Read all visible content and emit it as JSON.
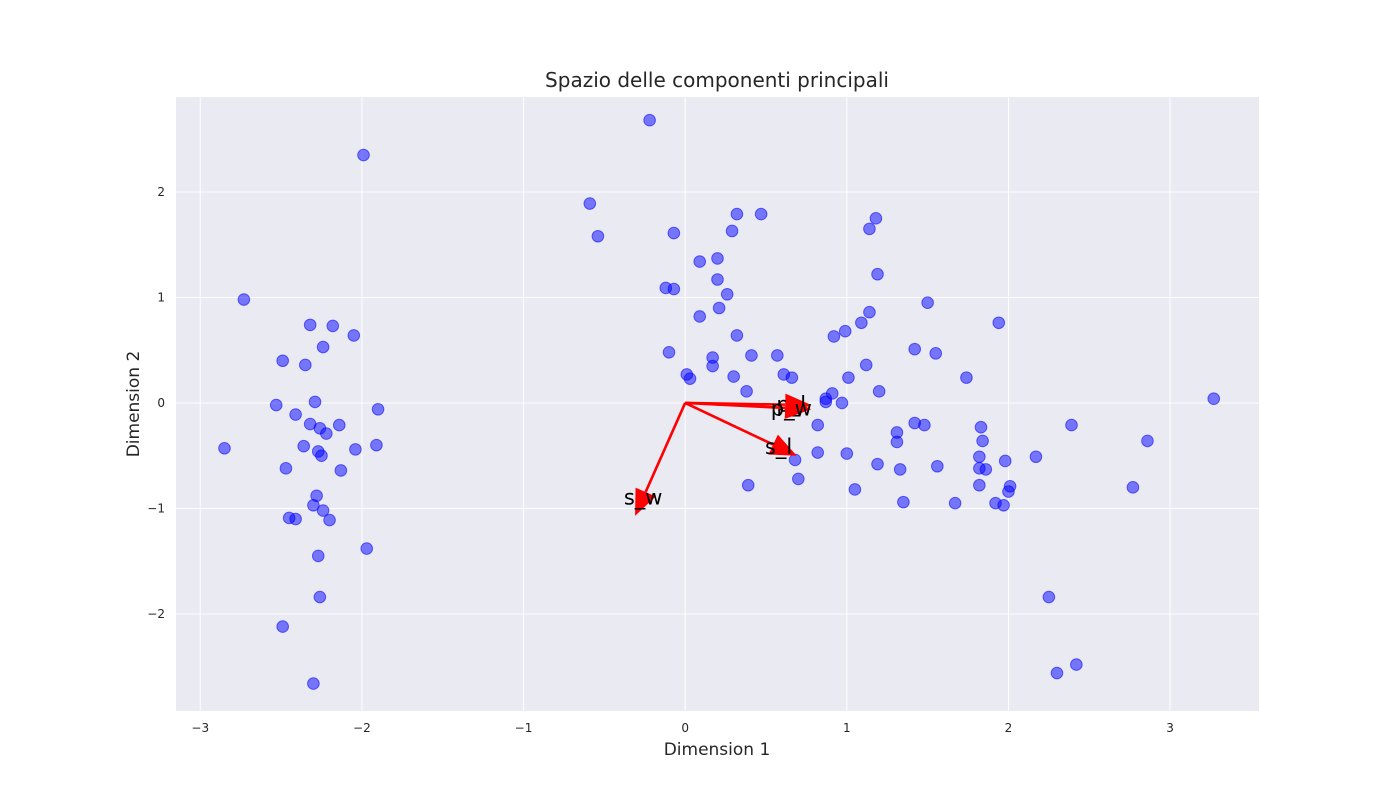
{
  "chart_data": {
    "type": "scatter",
    "title": "Spazio delle componenti principali",
    "xlabel": "Dimension 1",
    "ylabel": "Dimension 2",
    "xlim": [
      -3.15,
      3.55
    ],
    "ylim": [
      -2.92,
      2.9
    ],
    "xticks": [
      -3,
      -2,
      -1,
      0,
      1,
      2,
      3
    ],
    "yticks": [
      -2,
      -1,
      0,
      1,
      2
    ],
    "xtick_labels": [
      "−3",
      "−2",
      "−1",
      "0",
      "1",
      "2",
      "3"
    ],
    "ytick_labels": [
      "−2",
      "−1",
      "0",
      "1",
      "2"
    ],
    "grid": true,
    "background_color": "#eaeaf2",
    "point_color": "#0000ff",
    "arrow_color": "#ff0000",
    "points": [
      {
        "x": -2.85,
        "y": -0.43
      },
      {
        "x": -2.73,
        "y": 0.98
      },
      {
        "x": -2.53,
        "y": -0.02
      },
      {
        "x": -2.49,
        "y": 0.4
      },
      {
        "x": -2.49,
        "y": -2.12
      },
      {
        "x": -2.47,
        "y": -0.62
      },
      {
        "x": -2.45,
        "y": -1.09
      },
      {
        "x": -2.41,
        "y": -1.1
      },
      {
        "x": -2.41,
        "y": -0.11
      },
      {
        "x": -2.36,
        "y": -0.41
      },
      {
        "x": -2.35,
        "y": 0.36
      },
      {
        "x": -2.32,
        "y": 0.74
      },
      {
        "x": -2.32,
        "y": -0.2
      },
      {
        "x": -2.3,
        "y": -0.97
      },
      {
        "x": -2.3,
        "y": -2.66
      },
      {
        "x": -2.29,
        "y": 0.01
      },
      {
        "x": -2.28,
        "y": -0.88
      },
      {
        "x": -2.27,
        "y": -0.46
      },
      {
        "x": -2.27,
        "y": -1.45
      },
      {
        "x": -2.26,
        "y": -0.24
      },
      {
        "x": -2.26,
        "y": -1.84
      },
      {
        "x": -2.25,
        "y": -0.5
      },
      {
        "x": -2.24,
        "y": -1.02
      },
      {
        "x": -2.24,
        "y": 0.53
      },
      {
        "x": -2.22,
        "y": -0.29
      },
      {
        "x": -2.2,
        "y": -1.11
      },
      {
        "x": -2.18,
        "y": 0.73
      },
      {
        "x": -2.14,
        "y": -0.21
      },
      {
        "x": -2.13,
        "y": -0.64
      },
      {
        "x": -2.05,
        "y": 0.64
      },
      {
        "x": -2.04,
        "y": -0.44
      },
      {
        "x": -1.99,
        "y": 2.35
      },
      {
        "x": -1.97,
        "y": -1.38
      },
      {
        "x": -1.91,
        "y": -0.4
      },
      {
        "x": -1.9,
        "y": -0.06
      },
      {
        "x": -0.59,
        "y": 1.89
      },
      {
        "x": -0.54,
        "y": 1.58
      },
      {
        "x": -0.22,
        "y": 2.68
      },
      {
        "x": -0.12,
        "y": 1.09
      },
      {
        "x": -0.1,
        "y": 0.48
      },
      {
        "x": -0.07,
        "y": 1.61
      },
      {
        "x": -0.07,
        "y": 1.08
      },
      {
        "x": 0.01,
        "y": 0.27
      },
      {
        "x": 0.03,
        "y": 0.23
      },
      {
        "x": 0.09,
        "y": 1.34
      },
      {
        "x": 0.09,
        "y": 0.82
      },
      {
        "x": 0.17,
        "y": 0.43
      },
      {
        "x": 0.17,
        "y": 0.35
      },
      {
        "x": 0.2,
        "y": 1.37
      },
      {
        "x": 0.2,
        "y": 1.17
      },
      {
        "x": 0.21,
        "y": 0.9
      },
      {
        "x": 0.26,
        "y": 1.03
      },
      {
        "x": 0.29,
        "y": 1.63
      },
      {
        "x": 0.3,
        "y": 0.25
      },
      {
        "x": 0.32,
        "y": 1.79
      },
      {
        "x": 0.32,
        "y": 0.64
      },
      {
        "x": 0.38,
        "y": 0.11
      },
      {
        "x": 0.39,
        "y": -0.78
      },
      {
        "x": 0.41,
        "y": 0.45
      },
      {
        "x": 0.47,
        "y": 1.79
      },
      {
        "x": 0.57,
        "y": 0.45
      },
      {
        "x": 0.61,
        "y": 0.27
      },
      {
        "x": 0.66,
        "y": 0.24
      },
      {
        "x": 0.68,
        "y": -0.54
      },
      {
        "x": 0.7,
        "y": -0.72
      },
      {
        "x": 0.82,
        "y": -0.21
      },
      {
        "x": 0.82,
        "y": -0.47
      },
      {
        "x": 0.87,
        "y": 0.01
      },
      {
        "x": 0.87,
        "y": 0.04
      },
      {
        "x": 0.91,
        "y": 0.09
      },
      {
        "x": 0.92,
        "y": 0.63
      },
      {
        "x": 0.97,
        "y": 0.0
      },
      {
        "x": 0.99,
        "y": 0.68
      },
      {
        "x": 1.0,
        "y": -0.48
      },
      {
        "x": 1.01,
        "y": 0.24
      },
      {
        "x": 1.05,
        "y": -0.82
      },
      {
        "x": 1.09,
        "y": 0.76
      },
      {
        "x": 1.12,
        "y": 0.36
      },
      {
        "x": 1.14,
        "y": 1.65
      },
      {
        "x": 1.14,
        "y": 0.86
      },
      {
        "x": 1.18,
        "y": 1.75
      },
      {
        "x": 1.19,
        "y": 1.22
      },
      {
        "x": 1.19,
        "y": -0.58
      },
      {
        "x": 1.2,
        "y": 0.11
      },
      {
        "x": 1.31,
        "y": -0.28
      },
      {
        "x": 1.31,
        "y": -0.37
      },
      {
        "x": 1.33,
        "y": -0.63
      },
      {
        "x": 1.35,
        "y": -0.94
      },
      {
        "x": 1.42,
        "y": -0.19
      },
      {
        "x": 1.42,
        "y": 0.51
      },
      {
        "x": 1.48,
        "y": -0.21
      },
      {
        "x": 1.5,
        "y": 0.95
      },
      {
        "x": 1.55,
        "y": 0.47
      },
      {
        "x": 1.56,
        "y": -0.6
      },
      {
        "x": 1.67,
        "y": -0.95
      },
      {
        "x": 1.74,
        "y": 0.24
      },
      {
        "x": 1.82,
        "y": -0.51
      },
      {
        "x": 1.82,
        "y": -0.62
      },
      {
        "x": 1.82,
        "y": -0.78
      },
      {
        "x": 1.83,
        "y": -0.23
      },
      {
        "x": 1.84,
        "y": -0.36
      },
      {
        "x": 1.86,
        "y": -0.63
      },
      {
        "x": 1.92,
        "y": -0.95
      },
      {
        "x": 1.94,
        "y": 0.76
      },
      {
        "x": 1.97,
        "y": -0.97
      },
      {
        "x": 1.98,
        "y": -0.55
      },
      {
        "x": 2.0,
        "y": -0.84
      },
      {
        "x": 2.01,
        "y": -0.79
      },
      {
        "x": 2.17,
        "y": -0.51
      },
      {
        "x": 2.25,
        "y": -1.84
      },
      {
        "x": 2.3,
        "y": -2.56
      },
      {
        "x": 2.39,
        "y": -0.21
      },
      {
        "x": 2.42,
        "y": -2.48
      },
      {
        "x": 2.77,
        "y": -0.8
      },
      {
        "x": 2.86,
        "y": -0.36
      },
      {
        "x": 3.27,
        "y": 0.04
      }
    ],
    "vectors": [
      {
        "label": "p_l",
        "x": 0.78,
        "y": -0.02
      },
      {
        "label": "p_w",
        "x": 0.78,
        "y": -0.06
      },
      {
        "label": "s_l",
        "x": 0.69,
        "y": -0.5
      },
      {
        "label": "s_w",
        "x": -0.31,
        "y": -1.07
      }
    ]
  }
}
